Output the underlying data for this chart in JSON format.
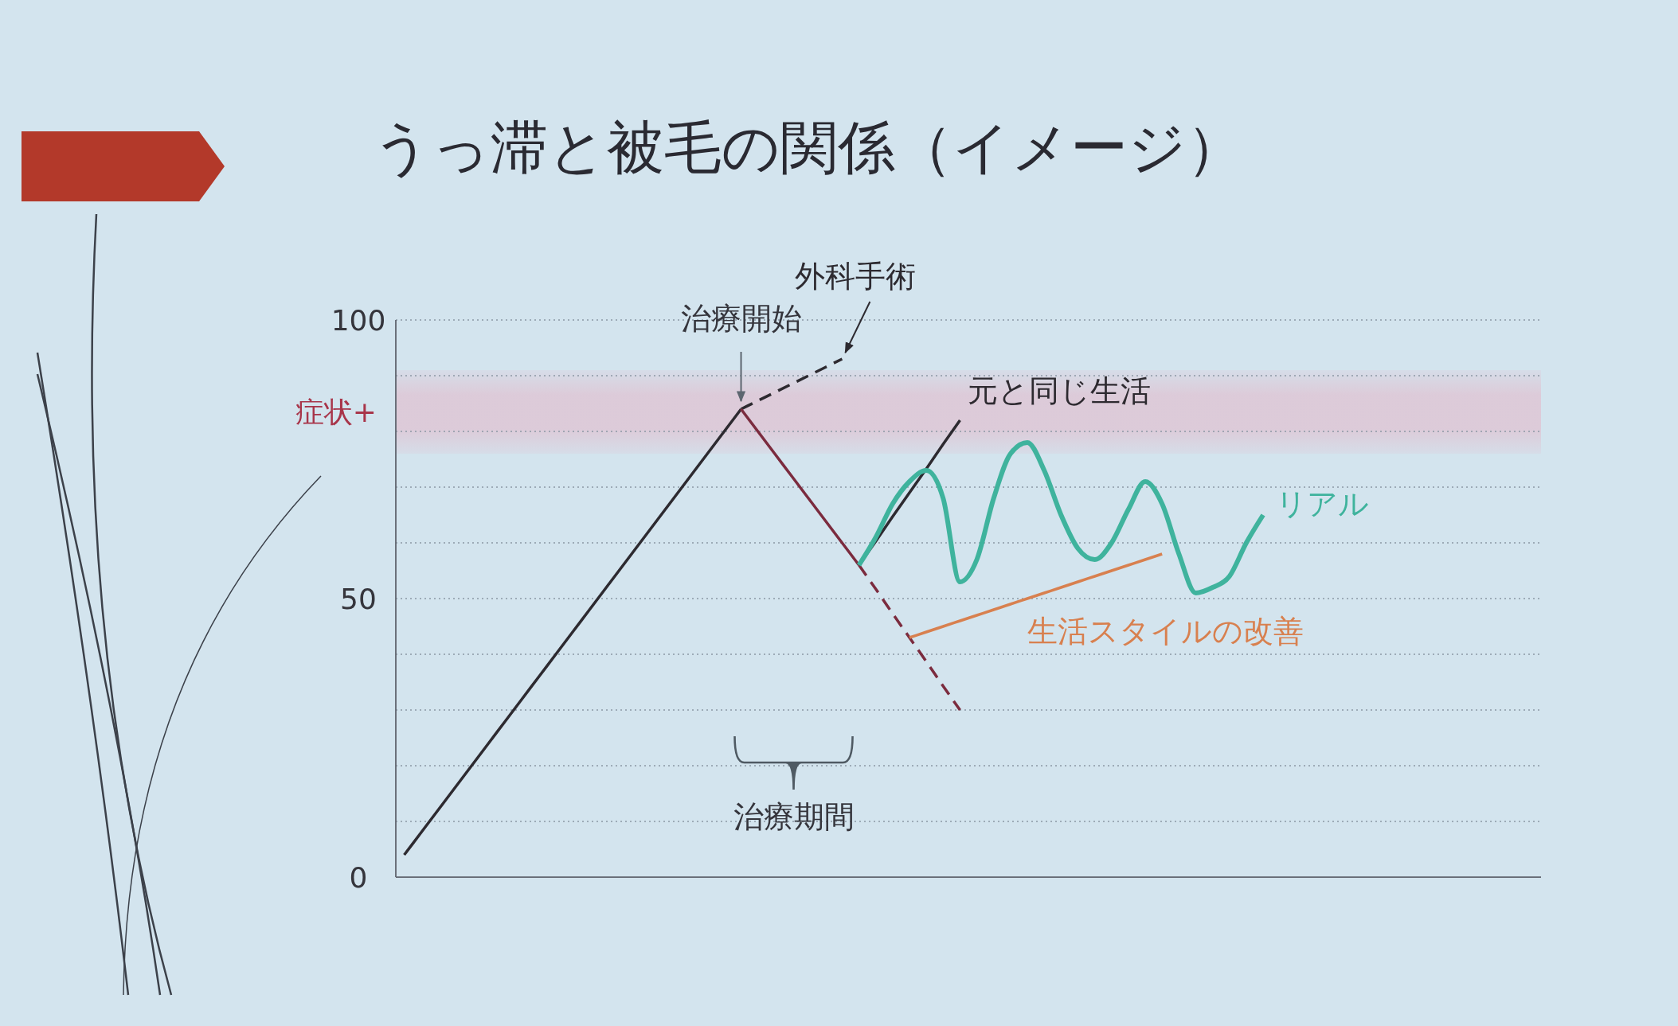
{
  "chart_data": {
    "type": "line",
    "title": "うっ滞と被毛の関係（イメージ）",
    "categories": [
      null,
      null,
      null,
      null,
      null,
      null,
      null,
      null,
      null,
      null,
      null,
      null,
      null,
      null,
      null,
      null,
      null,
      null,
      null,
      null,
      null,
      null,
      null,
      null,
      null,
      null,
      null,
      null,
      null,
      null,
      null,
      null,
      null,
      null,
      null,
      null,
      null,
      null,
      null,
      null,
      null,
      null,
      null,
      null,
      null,
      null,
      null,
      null,
      null,
      null,
      null,
      null,
      null,
      null,
      null,
      null,
      null,
      null,
      null,
      null,
      null,
      null,
      null,
      null,
      null,
      null,
      null,
      null
    ],
    "ylim": [
      0,
      100
    ],
    "yticks": [
      0,
      {
        "value": 10,
        "label": null
      },
      {
        "value": 20,
        "label": null
      },
      {
        "value": 30,
        "label": null
      },
      {
        "value": 40,
        "label": null
      },
      50,
      {
        "value": 60,
        "label": null
      },
      {
        "value": 70,
        "label": null
      },
      {
        "value": 80,
        "label": null
      },
      {
        "value": 90,
        "label": null
      },
      100
    ],
    "grid": "y",
    "bands": [
      {
        "axis": "y",
        "from": 76,
        "to": 91,
        "label": "症状+",
        "color": "#eaa8bc"
      }
    ],
    "annotations": [
      "治療開始",
      "治療期間"
    ],
    "series": [
      {
        "color": "#2d2a30",
        "values": [
          4,
          8,
          12,
          16,
          20,
          24,
          28,
          32,
          36,
          40,
          44,
          48,
          52,
          56,
          60,
          64,
          68,
          72,
          76,
          80,
          84,
          null,
          null,
          null,
          null,
          null,
          null,
          null,
          null,
          null,
          null,
          null,
          null,
          null,
          null,
          null,
          null,
          null,
          null,
          null,
          null,
          null,
          null,
          null,
          null,
          null,
          null,
          null,
          null,
          null,
          null,
          null,
          null,
          null,
          null,
          null,
          null,
          null,
          null,
          null,
          null,
          null,
          null,
          null,
          null,
          null,
          null,
          null
        ]
      },
      {
        "name": "外科手術",
        "color": "#2d2a30",
        "line_style": "dashed",
        "values": [
          null,
          null,
          null,
          null,
          null,
          null,
          null,
          null,
          null,
          null,
          null,
          null,
          null,
          null,
          null,
          null,
          null,
          null,
          null,
          null,
          84,
          85.5,
          87,
          88.5,
          90,
          91.5,
          93,
          null,
          null,
          null,
          null,
          null,
          null,
          null,
          null,
          null,
          null,
          null,
          null,
          null,
          null,
          null,
          null,
          null,
          null,
          null,
          null,
          null,
          null,
          null,
          null,
          null,
          null,
          null,
          null,
          null,
          null,
          null,
          null,
          null,
          null,
          null,
          null,
          null,
          null,
          null,
          null,
          null
        ]
      },
      {
        "color": "#7b2b3e",
        "values": [
          null,
          null,
          null,
          null,
          null,
          null,
          null,
          null,
          null,
          null,
          null,
          null,
          null,
          null,
          null,
          null,
          null,
          null,
          null,
          null,
          84,
          80,
          76,
          72,
          68,
          64,
          60,
          56,
          null,
          null,
          null,
          null,
          null,
          null,
          null,
          null,
          null,
          null,
          null,
          null,
          null,
          null,
          null,
          null,
          null,
          null,
          null,
          null,
          null,
          null,
          null,
          null,
          null,
          null,
          null,
          null,
          null,
          null,
          null,
          null,
          null,
          null,
          null,
          null,
          null,
          null,
          null,
          null
        ]
      },
      {
        "color": "#7b2b3e",
        "line_style": "dashed",
        "values": [
          null,
          null,
          null,
          null,
          null,
          null,
          null,
          null,
          null,
          null,
          null,
          null,
          null,
          null,
          null,
          null,
          null,
          null,
          null,
          null,
          null,
          null,
          null,
          null,
          null,
          null,
          null,
          56,
          51.7,
          47.3,
          43,
          38.7,
          34.3,
          30,
          null,
          null,
          null,
          null,
          null,
          null,
          null,
          null,
          null,
          null,
          null,
          null,
          null,
          null,
          null,
          null,
          null,
          null,
          null,
          null,
          null,
          null,
          null,
          null,
          null,
          null,
          null,
          null,
          null,
          null,
          null,
          null,
          null,
          null
        ]
      },
      {
        "name": "元と同じ生活",
        "color": "#2d2a30",
        "values": [
          null,
          null,
          null,
          null,
          null,
          null,
          null,
          null,
          null,
          null,
          null,
          null,
          null,
          null,
          null,
          null,
          null,
          null,
          null,
          null,
          null,
          null,
          null,
          null,
          null,
          null,
          null,
          56,
          60.3,
          64.7,
          69,
          73.3,
          77.7,
          82,
          null,
          null,
          null,
          null,
          null,
          null,
          null,
          null,
          null,
          null,
          null,
          null,
          null,
          null,
          null,
          null,
          null,
          null,
          null,
          null,
          null,
          null,
          null,
          null,
          null,
          null,
          null,
          null,
          null,
          null,
          null,
          null,
          null,
          null
        ]
      },
      {
        "name": "生活スタイルの改善",
        "color": "#d8804f",
        "values": [
          null,
          null,
          null,
          null,
          null,
          null,
          null,
          null,
          null,
          null,
          null,
          null,
          null,
          null,
          null,
          null,
          null,
          null,
          null,
          null,
          null,
          null,
          null,
          null,
          null,
          null,
          null,
          null,
          null,
          null,
          43,
          44,
          45,
          46,
          47,
          48,
          49,
          50,
          51,
          52,
          53,
          54,
          55,
          56,
          57,
          58,
          null,
          null,
          null,
          null,
          null,
          null,
          null,
          null,
          null,
          null,
          null,
          null,
          null,
          null,
          null,
          null,
          null,
          null,
          null,
          null,
          null,
          null
        ]
      },
      {
        "name": "リアル",
        "color": "#3fb39d",
        "values": [
          null,
          null,
          null,
          null,
          null,
          null,
          null,
          null,
          null,
          null,
          null,
          null,
          null,
          null,
          null,
          null,
          null,
          null,
          null,
          null,
          null,
          null,
          null,
          null,
          null,
          null,
          null,
          56,
          61,
          67,
          71,
          73,
          68,
          53,
          57,
          68,
          76,
          78,
          73,
          65,
          59,
          57,
          60,
          66,
          71,
          67,
          58,
          51,
          52,
          54,
          60,
          65,
          null,
          null,
          null,
          null,
          null,
          null,
          null,
          null,
          null,
          null,
          null,
          null,
          null,
          null,
          null,
          null
        ]
      }
    ]
  }
}
